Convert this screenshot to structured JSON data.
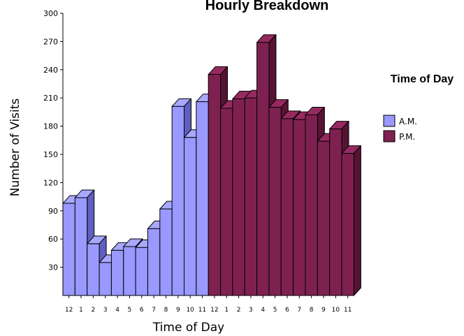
{
  "chart_data": {
    "type": "bar",
    "title": "Hourly Breakdown",
    "xlabel": "Time of Day",
    "ylabel": "Number of Visits",
    "ylim": [
      0,
      300
    ],
    "yticks": [
      30,
      60,
      90,
      120,
      150,
      180,
      210,
      240,
      270,
      300
    ],
    "categories": [
      "12",
      "1",
      "2",
      "3",
      "4",
      "5",
      "6",
      "7",
      "8",
      "9",
      "10",
      "11",
      "12",
      "1",
      "2",
      "3",
      "4",
      "5",
      "6",
      "7",
      "8",
      "9",
      "10",
      "11"
    ],
    "values": [
      98,
      104,
      55,
      35,
      48,
      52,
      51,
      71,
      92,
      201,
      168,
      206,
      235,
      199,
      209,
      210,
      269,
      200,
      188,
      187,
      192,
      164,
      177,
      151
    ],
    "series": [
      {
        "name": "A.M.",
        "start": 0,
        "end": 12,
        "color": "#9999ff",
        "top_color": "#a8a8ff",
        "side_color": "#5f5fbf"
      },
      {
        "name": "P.M.",
        "start": 12,
        "end": 24,
        "color": "#7f2150",
        "top_color": "#962a60",
        "side_color": "#561434"
      }
    ],
    "legend": {
      "title": "Time of Day",
      "position": "right"
    },
    "grid": false
  }
}
